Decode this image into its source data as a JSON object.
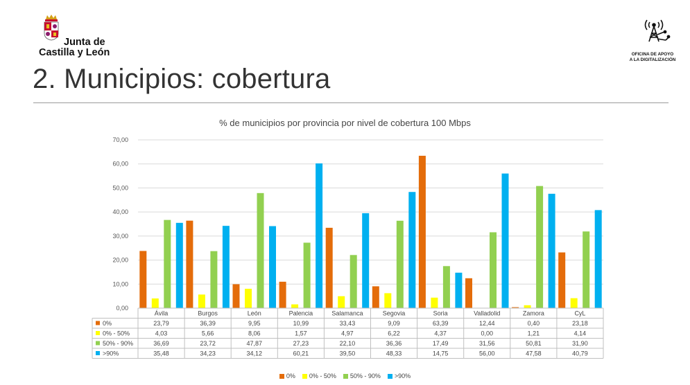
{
  "header": {
    "org_line1": "Junta de",
    "org_line2": "Castilla y León",
    "office_line1": "OFICINA DE APOYO",
    "office_line2": "A LA DIGITALIZACIÓN",
    "page_title": "2. Municipios: cobertura"
  },
  "chart_data": {
    "type": "bar",
    "title": "% de municipios por provincia por nivel de cobertura 100 Mbps",
    "categories": [
      "Ávila",
      "Burgos",
      "León",
      "Palencia",
      "Salamanca",
      "Segovia",
      "Soria",
      "Valladolid",
      "Zamora",
      "CyL"
    ],
    "ylim": [
      0,
      70
    ],
    "yticks": [
      "0,00",
      "10,00",
      "20,00",
      "30,00",
      "40,00",
      "50,00",
      "60,00",
      "70,00"
    ],
    "series": [
      {
        "name": "0%",
        "color": "#E46C0A",
        "values": [
          23.79,
          36.39,
          9.95,
          10.99,
          33.43,
          9.09,
          63.39,
          12.44,
          0.4,
          23.18
        ],
        "labels": [
          "23,79",
          "36,39",
          "9,95",
          "10,99",
          "33,43",
          "9,09",
          "63,39",
          "12,44",
          "0,40",
          "23,18"
        ]
      },
      {
        "name": "0% - 50%",
        "color": "#FFFF00",
        "values": [
          4.03,
          5.66,
          8.06,
          1.57,
          4.97,
          6.22,
          4.37,
          0.0,
          1.21,
          4.14
        ],
        "labels": [
          "4,03",
          "5,66",
          "8,06",
          "1,57",
          "4,97",
          "6,22",
          "4,37",
          "0,00",
          "1,21",
          "4,14"
        ]
      },
      {
        "name": "50% - 90%",
        "color": "#92D050",
        "values": [
          36.69,
          23.72,
          47.87,
          27.23,
          22.1,
          36.36,
          17.49,
          31.56,
          50.81,
          31.9
        ],
        "labels": [
          "36,69",
          "23,72",
          "47,87",
          "27,23",
          "22,10",
          "36,36",
          "17,49",
          "31,56",
          "50,81",
          "31,90"
        ]
      },
      {
        "name": ">90%",
        "color": "#00B0F0",
        "values": [
          35.48,
          34.23,
          34.12,
          60.21,
          39.5,
          48.33,
          14.75,
          56.0,
          47.58,
          40.79
        ],
        "labels": [
          "35,48",
          "34,23",
          "34,12",
          "60,21",
          "39,50",
          "48,33",
          "14,75",
          "56,00",
          "47,58",
          "40,79"
        ]
      }
    ]
  }
}
